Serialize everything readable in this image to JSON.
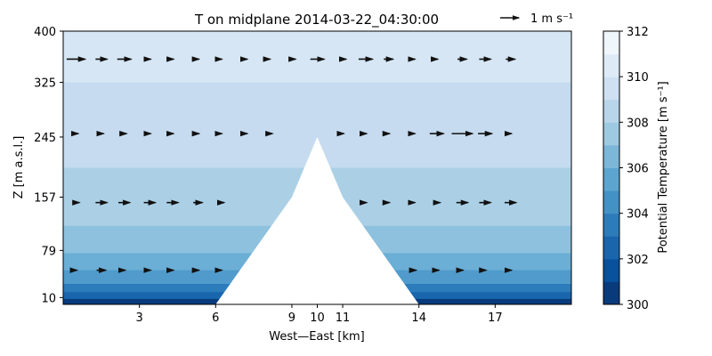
{
  "chart_data": {
    "type": "contourf",
    "title": "T on midplane 2014-03-22_04:30:00",
    "xlabel": "West—East [km]",
    "ylabel": "Z [m a.s.l.]",
    "xlim": [
      0,
      20
    ],
    "ylim": [
      0,
      400
    ],
    "x_ticks": [
      3,
      6,
      9,
      10,
      11,
      14,
      17
    ],
    "y_ticks": [
      10,
      79,
      157,
      245,
      325,
      400
    ],
    "terrain": {
      "x": [
        6,
        9,
        10,
        11,
        14
      ],
      "z": [
        0,
        157,
        245,
        157,
        0
      ]
    },
    "colormap": "Blues_r",
    "levels": [
      300,
      301,
      302,
      303,
      304,
      305,
      306,
      307,
      308,
      309,
      310,
      311,
      312
    ],
    "layers": [
      {
        "z_top": 8,
        "value": 300.5
      },
      {
        "z_top": 18,
        "value": 302.5
      },
      {
        "z_top": 30,
        "value": 303.5
      },
      {
        "z_top": 50,
        "value": 305
      },
      {
        "z_top": 75,
        "value": 306
      },
      {
        "z_top": 115,
        "value": 307
      },
      {
        "z_top": 200,
        "value": 308
      },
      {
        "z_top": 325,
        "value": 309
      },
      {
        "z_top": 400,
        "value": 310
      }
    ],
    "quiver": {
      "rows_z": [
        359,
        250,
        149,
        50
      ],
      "x_positions": [
        0.5,
        1.5,
        2.4,
        3.4,
        4.3,
        5.3,
        6.2,
        7.2,
        8.1,
        9.1,
        10,
        11,
        11.9,
        12.8,
        13.8,
        14.7,
        15.7,
        16.6,
        17.6
      ],
      "u": [
        [
          0.8,
          0.5,
          0.6,
          0.1,
          0.1,
          0.1,
          0.1,
          0.1,
          0.1,
          0.1,
          0.6,
          0.3,
          0.6,
          0.4,
          0.1,
          0.1,
          0.4,
          0.5,
          0.4
        ],
        [
          0.2,
          0.2,
          0.2,
          0.1,
          0.1,
          0.1,
          0.1,
          0.1,
          0.3,
          null,
          null,
          0.1,
          0.1,
          0.1,
          0.1,
          0.6,
          0.9,
          0.6,
          0.1
        ],
        [
          0.3,
          0.5,
          0.5,
          0.5,
          0.5,
          0.4,
          0.3,
          null,
          null,
          null,
          null,
          null,
          0.1,
          0.1,
          0.1,
          0.3,
          0.5,
          0.5,
          0.5
        ],
        [
          0.1,
          0.4,
          0.1,
          0.1,
          0.1,
          0.1,
          0.1,
          null,
          null,
          null,
          null,
          null,
          null,
          null,
          0.2,
          0.2,
          0.1,
          0.1,
          0.1
        ]
      ],
      "key_label": "1 m s⁻¹"
    },
    "colorbar": {
      "label": "Potential Temperature [m s⁻¹]",
      "min": 300,
      "max": 312,
      "ticks": [
        300,
        302,
        304,
        306,
        308,
        310,
        312
      ]
    }
  }
}
